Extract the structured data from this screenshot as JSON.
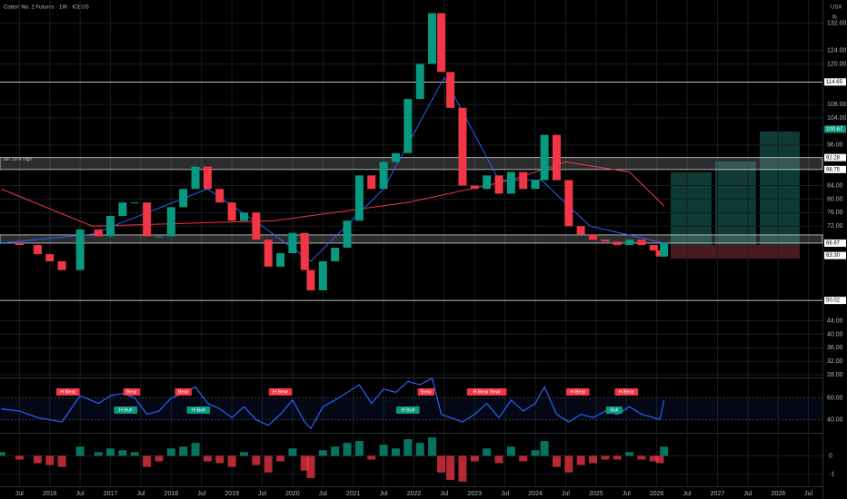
{
  "header": {
    "title": "Cotton No. 2 Futures · 1W · ICEUS",
    "currency": "USX",
    "unit": "lb"
  },
  "chart_data": {
    "type": "candlestick",
    "colors": {
      "up": "#089981",
      "down": "#f23645",
      "background": "#000000",
      "grid": "#1a1c24"
    },
    "xlim": [
      2015.18,
      2028.73
    ],
    "xticks": [
      {
        "value": 2015.5,
        "label": "Jul"
      },
      2016,
      {
        "value": 2016.5,
        "label": "Jul"
      },
      2017,
      {
        "value": 2017.5,
        "label": "Jul"
      },
      2018,
      {
        "value": 2018.5,
        "label": "Jul"
      },
      2019,
      {
        "value": 2019.5,
        "label": "Jul"
      },
      2020,
      {
        "value": 2020.5,
        "label": "Jul"
      },
      2021,
      {
        "value": 2021.5,
        "label": "Jul"
      },
      2022,
      {
        "value": 2022.5,
        "label": "Jul"
      },
      2023,
      {
        "value": 2023.5,
        "label": "Jul"
      },
      2024,
      {
        "value": 2024.5,
        "label": "Jul"
      },
      2025,
      {
        "value": 2025.5,
        "label": "Jul"
      },
      2026,
      {
        "value": 2026.5,
        "label": "Jul"
      },
      2027,
      {
        "value": 2027.5,
        "label": "Jul"
      },
      2028,
      {
        "value": 2028.5,
        "label": "Jul"
      }
    ],
    "ylim": [
      27.5,
      138.9
    ],
    "yticks": [
      {
        "value": 132,
        "label": "132.00"
      },
      {
        "value": 124,
        "label": "124.00"
      },
      {
        "value": 120,
        "label": "120.00"
      },
      {
        "value": 108,
        "label": "108.00"
      },
      {
        "value": 104,
        "label": "104.00"
      },
      {
        "value": 96,
        "label": "96.00"
      },
      {
        "value": 84,
        "label": "84.00"
      },
      {
        "value": 80,
        "label": "80.00"
      },
      {
        "value": 76,
        "label": "76.00"
      },
      {
        "value": 72,
        "label": "72.00"
      },
      {
        "value": 44,
        "label": "44.00"
      },
      {
        "value": 40,
        "label": "40.00"
      },
      {
        "value": 36,
        "label": "36.00"
      },
      {
        "value": 32,
        "label": "32.00"
      },
      {
        "value": 28,
        "label": "28.00"
      }
    ],
    "x": [
      2015.2,
      2015.5,
      2015.8,
      2016.0,
      2016.2,
      2016.5,
      2016.8,
      2017.0,
      2017.2,
      2017.4,
      2017.6,
      2017.8,
      2018.0,
      2018.2,
      2018.4,
      2018.6,
      2018.8,
      2019.0,
      2019.2,
      2019.4,
      2019.6,
      2019.8,
      2020.0,
      2020.2,
      2020.3,
      2020.5,
      2020.7,
      2020.9,
      2021.1,
      2021.3,
      2021.5,
      2021.7,
      2021.9,
      2022.1,
      2022.3,
      2022.45,
      2022.6,
      2022.8,
      2023.0,
      2023.2,
      2023.4,
      2023.6,
      2023.8,
      2024.0,
      2024.15,
      2024.35,
      2024.55,
      2024.75,
      2024.95,
      2025.15,
      2025.35,
      2025.55,
      2025.75,
      2025.95,
      2026.05,
      2026.12
    ],
    "values": [
      67,
      66.4,
      63.7,
      61.6,
      59,
      71,
      69,
      75,
      79,
      79,
      69,
      69,
      77.6,
      83,
      89.6,
      83,
      79,
      73.6,
      76,
      68,
      60,
      64,
      70,
      59,
      53,
      61.6,
      65.6,
      73.6,
      87,
      83,
      91,
      93.6,
      109.6,
      120,
      135,
      117.6,
      107,
      84,
      83,
      87,
      81.6,
      88,
      83,
      85.6,
      99,
      85.6,
      72,
      69.6,
      68,
      67.4,
      66.4,
      68,
      66.4,
      64.8,
      63,
      67
    ],
    "lines": [
      {
        "color": "#f23645",
        "x": [
          2015.2,
          2016.7,
          2019.7,
          2021.9,
          2023.6,
          2024.5,
          2025.55,
          2026.12
        ],
        "values": [
          83,
          72,
          73.6,
          79,
          85.6,
          91,
          88,
          78
        ]
      },
      {
        "color": "#2962ff",
        "x": [
          2015.2,
          2016.7,
          2018.6,
          2019.5,
          2020.3,
          2021.5,
          2022.5,
          2023.4,
          2024.1,
          2024.9,
          2026.12
        ],
        "values": [
          67,
          69.6,
          83,
          72,
          61.6,
          83,
          116,
          85.6,
          85.6,
          72,
          67
        ]
      }
    ],
    "zones": [
      {
        "from": 88.75,
        "to": 92.28,
        "text": "Jan 1974 High"
      },
      {
        "from": 66.97,
        "to": 69.4
      }
    ],
    "levels": [
      {
        "value": 114.65,
        "label": "114.65",
        "line": true,
        "color": "#ffffff"
      },
      {
        "value": 100.67,
        "label": "100.67",
        "line": false,
        "color": "#089981"
      },
      {
        "value": 92.28,
        "label": "92.28",
        "line": false,
        "color": "#ffffff"
      },
      {
        "value": 88.75,
        "label": "88.75",
        "line": false,
        "color": "#ffffff"
      },
      {
        "value": 66.97,
        "label": "66.97",
        "line": false,
        "color": "#ffffff"
      },
      {
        "value": 63.3,
        "label": "63.30",
        "line": false,
        "color": "#ffffff"
      },
      {
        "value": 50.02,
        "label": "50.02",
        "line": true,
        "color": "#ffffff"
      }
    ],
    "rsi": {
      "color": "#2962ff",
      "ylim": [
        29,
        77
      ],
      "yticks": [
        {
          "value": 40,
          "label": "40.00"
        },
        {
          "value": 60,
          "label": "60.00"
        }
      ],
      "values": [
        50,
        48,
        42,
        40,
        38,
        62,
        55,
        62,
        64,
        60,
        45,
        48,
        60,
        64,
        70,
        55,
        50,
        42,
        52,
        40,
        35,
        45,
        58,
        38,
        32,
        52,
        58,
        65,
        72,
        55,
        68,
        65,
        75,
        72,
        78,
        45,
        42,
        38,
        45,
        55,
        42,
        58,
        48,
        55,
        70,
        45,
        38,
        45,
        42,
        48,
        45,
        52,
        45,
        42,
        40,
        58
      ],
      "annotations": [
        {
          "text": "H Bear",
          "x": 2016.3,
          "color": "#f23645"
        },
        {
          "text": "Bear",
          "x": 2017.35,
          "color": "#f23645"
        },
        {
          "text": "H Bull",
          "x": 2017.25,
          "color": "#089981"
        },
        {
          "text": "Bear",
          "x": 2018.2,
          "color": "#f23645"
        },
        {
          "text": "H Bull",
          "x": 2018.45,
          "color": "#089981"
        },
        {
          "text": "H Bear",
          "x": 2019.8,
          "color": "#f23645"
        },
        {
          "text": "H Bull",
          "x": 2021.9,
          "color": "#089981"
        },
        {
          "text": "Bear",
          "x": 2022.2,
          "color": "#f23645"
        },
        {
          "text": "H Bear Bear",
          "x": 2023.2,
          "color": "#f23645"
        },
        {
          "text": "H Bear",
          "x": 2024.7,
          "color": "#f23645"
        },
        {
          "text": "Bull",
          "x": 2025.3,
          "color": "#089981"
        },
        {
          "text": "H Bear",
          "x": 2025.5,
          "color": "#f23645"
        }
      ]
    },
    "macd": {
      "ylim": [
        -1.6,
        1.15
      ],
      "yticks": [
        0,
        -1
      ],
      "values": [
        0.2,
        -0.2,
        -0.4,
        -0.5,
        -0.6,
        0.5,
        0.2,
        0.4,
        0.3,
        0.2,
        -0.6,
        -0.3,
        0.4,
        0.5,
        0.7,
        -0.3,
        -0.4,
        -0.6,
        0.2,
        -0.5,
        -0.9,
        -0.3,
        0.4,
        -0.8,
        -1.2,
        0.3,
        0.5,
        0.7,
        0.8,
        -0.2,
        0.6,
        0.4,
        0.9,
        0.7,
        1.0,
        -0.9,
        -1.3,
        -1.4,
        -0.3,
        0.4,
        -0.4,
        0.5,
        -0.3,
        0.3,
        0.8,
        -0.6,
        -0.9,
        -0.5,
        -0.4,
        -0.2,
        -0.2,
        0.2,
        -0.2,
        -0.3,
        -0.4,
        0.5
      ]
    }
  }
}
